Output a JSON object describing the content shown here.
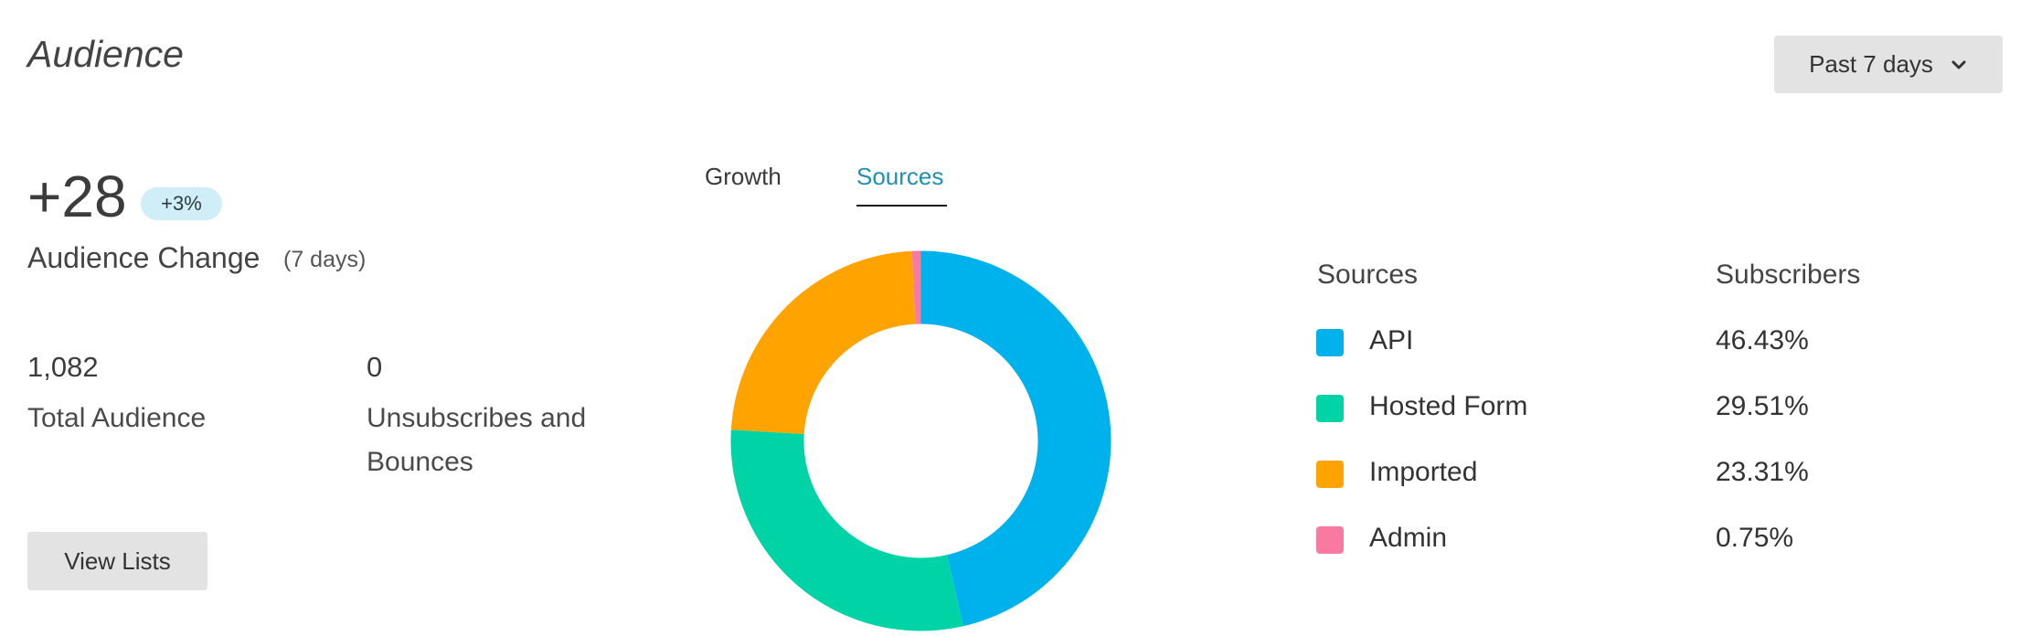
{
  "header": {
    "title": "Audience",
    "range_label": "Past 7 days"
  },
  "summary": {
    "change_value": "+28",
    "change_badge": "+3%",
    "change_label": "Audience Change",
    "change_period": "(7 days)",
    "total_value": "1,082",
    "total_label": "Total Audience",
    "unsub_value": "0",
    "unsub_label": "Unsubscribes and Bounces",
    "view_lists_label": "View Lists"
  },
  "tabs": [
    {
      "label": "Growth",
      "active": false
    },
    {
      "label": "Sources",
      "active": true
    }
  ],
  "legend": {
    "col_sources": "Sources",
    "col_subscribers": "Subscribers",
    "items": [
      {
        "name": "API",
        "value": "46.43%",
        "color": "#00b2ec"
      },
      {
        "name": "Hosted Form",
        "value": "29.51%",
        "color": "#00d4a6"
      },
      {
        "name": "Imported",
        "value": "23.31%",
        "color": "#ffa300"
      },
      {
        "name": "Admin",
        "value": "0.75%",
        "color": "#f97aa0"
      }
    ]
  },
  "chart_data": {
    "type": "pie",
    "categories": [
      "API",
      "Hosted Form",
      "Imported",
      "Admin"
    ],
    "values": [
      46.43,
      29.51,
      23.31,
      0.75
    ],
    "colors": [
      "#00b2ec",
      "#00d4a6",
      "#ffa300",
      "#f97aa0"
    ],
    "donut": true
  }
}
